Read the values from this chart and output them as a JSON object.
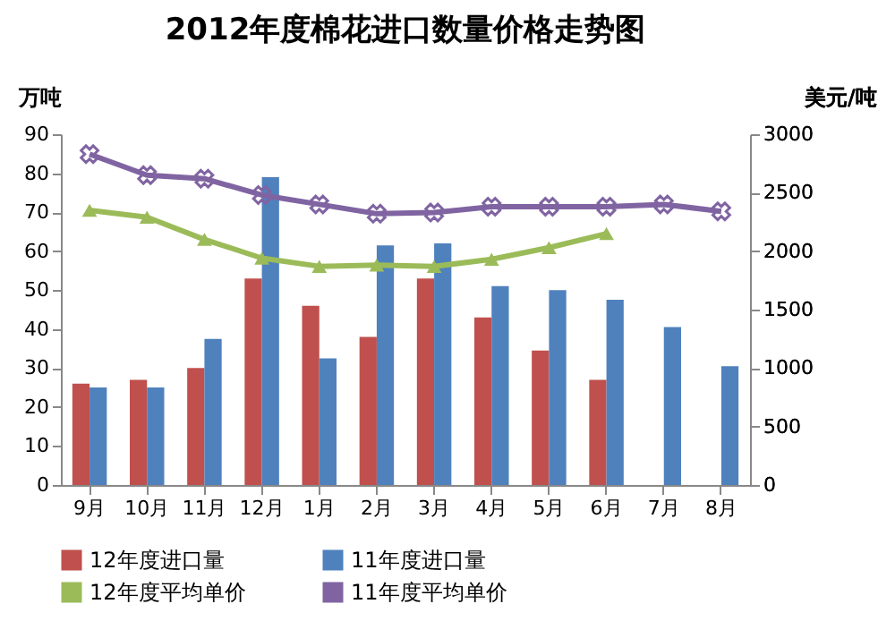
{
  "chart_data": {
    "type": "bar",
    "title": "2012年度棉花进口数量价格走势图",
    "ylabel": "万吨",
    "y2label": "美元/吨",
    "categories": [
      "9月",
      "10月",
      "11月",
      "12月",
      "1月",
      "2月",
      "3月",
      "4月",
      "5月",
      "6月",
      "7月",
      "8月"
    ],
    "series": [
      {
        "name": "12年度进口量",
        "color": "#c0504d",
        "values": [
          26,
          27,
          30,
          53,
          46,
          38,
          53,
          43,
          34.5,
          27,
          null,
          null
        ]
      },
      {
        "name": "11年度进口量",
        "color": "#4f81bd",
        "values": [
          25,
          25,
          37.5,
          79,
          32.5,
          61.5,
          62,
          51,
          50,
          47.5,
          40.5,
          30.5
        ]
      },
      {
        "name": "12年度平均单价",
        "type": "line",
        "axis": "y2",
        "marker": "triangle",
        "color": "#9bbb59",
        "values": [
          2350,
          2290,
          2100,
          1940,
          1870,
          1880,
          1870,
          1930,
          2030,
          2150,
          null,
          null
        ]
      },
      {
        "name": "11年度平均单价",
        "type": "line",
        "axis": "y2",
        "marker": "cross",
        "color": "#8064a2",
        "values": [
          2830,
          2650,
          2620,
          2480,
          2400,
          2320,
          2330,
          2380,
          2380,
          2380,
          2400,
          2340
        ]
      }
    ],
    "ylim": [
      0,
      90
    ],
    "yticks": [
      0,
      10,
      20,
      30,
      40,
      50,
      60,
      70,
      80,
      90
    ],
    "y2lim": [
      0,
      3000
    ],
    "y2ticks": [
      0,
      500,
      1000,
      1500,
      2000,
      2500,
      3000
    ],
    "grid": false,
    "legend": "bottom"
  }
}
